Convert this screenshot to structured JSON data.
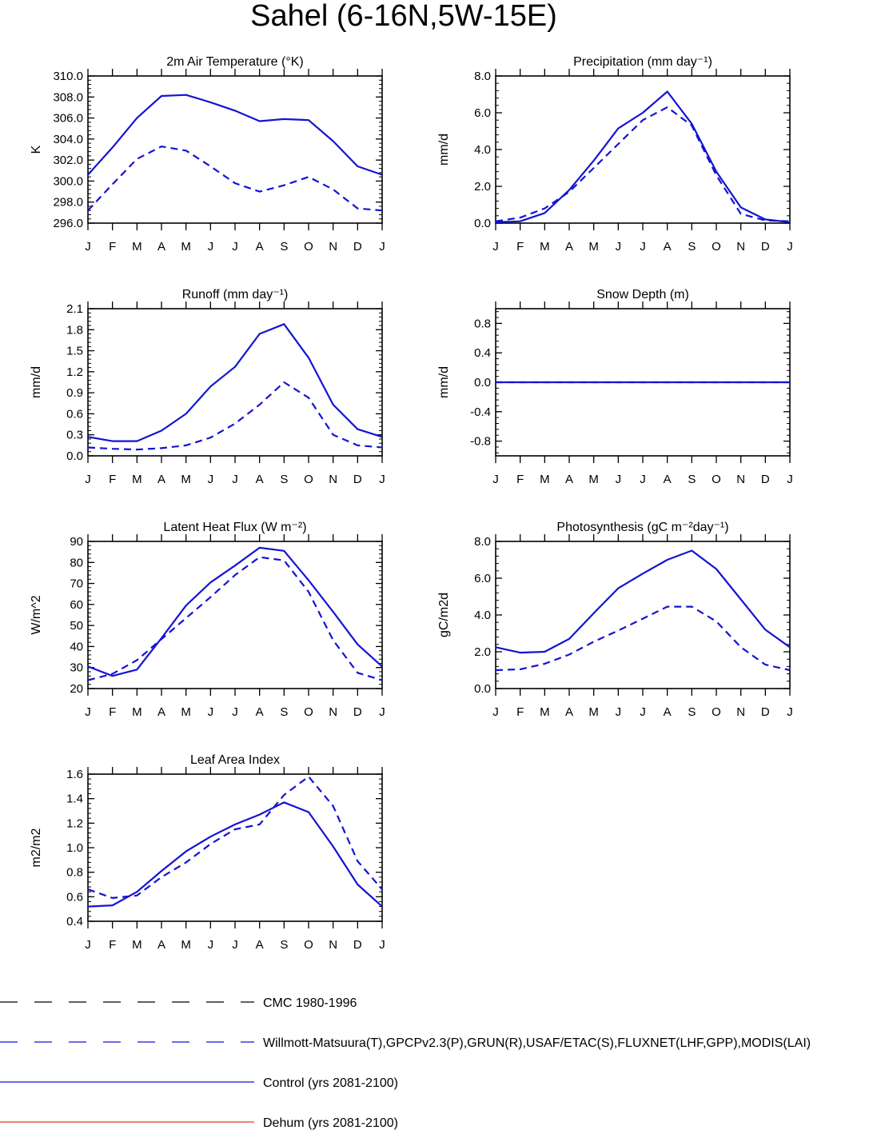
{
  "figure": {
    "title": "Sahel (6-16N,5W-15E)"
  },
  "colors": {
    "control": "#1414d2",
    "observed": "#1414d2",
    "cmc": "#000000",
    "dehum": "#e8341c",
    "axis": "#000000"
  },
  "chart_data": [
    {
      "type": "line",
      "id": "temp",
      "title": "2m Air Temperature (°K)",
      "ylabel": "K",
      "ylim": [
        296,
        310
      ],
      "yticks": [
        "296.0",
        "298.0",
        "300.0",
        "302.0",
        "304.0",
        "306.0",
        "308.0",
        "310.0"
      ],
      "categories": [
        "J",
        "F",
        "M",
        "A",
        "M",
        "J",
        "J",
        "A",
        "S",
        "O",
        "N",
        "D",
        "J"
      ],
      "series": [
        {
          "name": "Control (yrs 2081-2100)",
          "style": "solid",
          "values": [
            300.6,
            303.2,
            306.0,
            308.1,
            308.2,
            307.5,
            306.7,
            305.7,
            305.9,
            305.8,
            303.8,
            301.4,
            300.6
          ]
        },
        {
          "name": "Observed",
          "style": "dashed",
          "values": [
            297.2,
            299.7,
            302.1,
            303.3,
            302.9,
            301.4,
            299.8,
            299.0,
            299.6,
            300.4,
            299.2,
            297.4,
            297.2
          ]
        }
      ]
    },
    {
      "type": "line",
      "id": "precip",
      "title": "Precipitation (mm day⁻¹)",
      "ylabel": "mm/d",
      "ylim": [
        0,
        8
      ],
      "yticks": [
        "0.0",
        "2.0",
        "4.0",
        "6.0",
        "8.0"
      ],
      "categories": [
        "J",
        "F",
        "M",
        "A",
        "M",
        "J",
        "J",
        "A",
        "S",
        "O",
        "N",
        "D",
        "J"
      ],
      "series": [
        {
          "name": "Control (yrs 2081-2100)",
          "style": "solid",
          "values": [
            0.05,
            0.1,
            0.55,
            1.8,
            3.4,
            5.15,
            6.0,
            7.15,
            5.4,
            2.8,
            0.85,
            0.2,
            0.05
          ]
        },
        {
          "name": "Observed",
          "style": "dashed",
          "values": [
            0.1,
            0.3,
            0.8,
            1.7,
            3.0,
            4.3,
            5.6,
            6.3,
            5.3,
            2.6,
            0.5,
            0.15,
            0.1
          ]
        }
      ]
    },
    {
      "type": "line",
      "id": "runoff",
      "title": "Runoff (mm day⁻¹)",
      "ylabel": "mm/d",
      "ylim": [
        0,
        2.1
      ],
      "yticks": [
        "0.0",
        "0.3",
        "0.6",
        "0.9",
        "1.2",
        "1.5",
        "1.8",
        "2.1"
      ],
      "categories": [
        "J",
        "F",
        "M",
        "A",
        "M",
        "J",
        "J",
        "A",
        "S",
        "O",
        "N",
        "D",
        "J"
      ],
      "series": [
        {
          "name": "Control (yrs 2081-2100)",
          "style": "solid",
          "values": [
            0.27,
            0.21,
            0.21,
            0.36,
            0.6,
            0.99,
            1.27,
            1.74,
            1.88,
            1.4,
            0.73,
            0.38,
            0.27
          ]
        },
        {
          "name": "Observed",
          "style": "dashed",
          "values": [
            0.12,
            0.1,
            0.09,
            0.11,
            0.15,
            0.26,
            0.46,
            0.73,
            1.05,
            0.83,
            0.3,
            0.15,
            0.12
          ]
        }
      ]
    },
    {
      "type": "line",
      "id": "snow",
      "title": "Snow Depth (m)",
      "ylabel": "mm/d",
      "ylim": [
        -1,
        1
      ],
      "yticks": [
        "-0.8",
        "-0.4",
        "0.0",
        "0.4",
        "0.8"
      ],
      "categories": [
        "J",
        "F",
        "M",
        "A",
        "M",
        "J",
        "J",
        "A",
        "S",
        "O",
        "N",
        "D",
        "J"
      ],
      "series": [
        {
          "name": "Control (yrs 2081-2100)",
          "style": "solid",
          "values": [
            0,
            0,
            0,
            0,
            0,
            0,
            0,
            0,
            0,
            0,
            0,
            0,
            0
          ]
        },
        {
          "name": "Observed",
          "style": "dashed",
          "values": [
            0,
            0,
            0,
            0,
            0,
            0,
            0,
            0,
            0,
            0,
            0,
            0,
            0
          ]
        }
      ]
    },
    {
      "type": "line",
      "id": "lhf",
      "title": "Latent Heat Flux (W m⁻²)",
      "ylabel": "W/m^2",
      "ylim": [
        20,
        90
      ],
      "yticks": [
        "20",
        "30",
        "40",
        "50",
        "60",
        "70",
        "80",
        "90"
      ],
      "categories": [
        "J",
        "F",
        "M",
        "A",
        "M",
        "J",
        "J",
        "A",
        "S",
        "O",
        "N",
        "D",
        "J"
      ],
      "series": [
        {
          "name": "Control (yrs 2081-2100)",
          "style": "solid",
          "values": [
            30.5,
            26.0,
            29.0,
            44.0,
            59.5,
            70.5,
            78.5,
            87.0,
            85.5,
            71.5,
            56.5,
            41.0,
            30.5
          ]
        },
        {
          "name": "Observed",
          "style": "dashed",
          "values": [
            24.0,
            27.0,
            33.5,
            43.5,
            53.5,
            63.5,
            74.0,
            82.5,
            81.0,
            66.0,
            43.0,
            27.5,
            24.0
          ]
        }
      ]
    },
    {
      "type": "line",
      "id": "photo",
      "title": "Photosynthesis (gC m⁻²day⁻¹)",
      "ylabel": "gC/m2d",
      "ylim": [
        0,
        8
      ],
      "yticks": [
        "0.0",
        "2.0",
        "4.0",
        "6.0",
        "8.0"
      ],
      "categories": [
        "J",
        "F",
        "M",
        "A",
        "M",
        "J",
        "J",
        "A",
        "S",
        "O",
        "N",
        "D",
        "J"
      ],
      "series": [
        {
          "name": "Control (yrs 2081-2100)",
          "style": "solid",
          "values": [
            2.25,
            1.95,
            2.0,
            2.7,
            4.1,
            5.45,
            6.25,
            7.0,
            7.5,
            6.5,
            4.85,
            3.2,
            2.25
          ]
        },
        {
          "name": "Observed",
          "style": "dashed",
          "values": [
            1.0,
            1.05,
            1.35,
            1.85,
            2.55,
            3.15,
            3.8,
            4.45,
            4.45,
            3.65,
            2.25,
            1.3,
            1.0
          ]
        }
      ]
    },
    {
      "type": "line",
      "id": "lai",
      "title": "Leaf Area Index",
      "ylabel": "m2/m2",
      "ylim": [
        0.4,
        1.6
      ],
      "yticks": [
        "0.4",
        "0.6",
        "0.8",
        "1.0",
        "1.2",
        "1.4",
        "1.6"
      ],
      "categories": [
        "J",
        "F",
        "M",
        "A",
        "M",
        "J",
        "J",
        "A",
        "S",
        "O",
        "N",
        "D",
        "J"
      ],
      "series": [
        {
          "name": "Control (yrs 2081-2100)",
          "style": "solid",
          "values": [
            0.52,
            0.53,
            0.64,
            0.81,
            0.97,
            1.09,
            1.19,
            1.27,
            1.37,
            1.29,
            1.01,
            0.7,
            0.52
          ]
        },
        {
          "name": "Observed",
          "style": "dashed",
          "values": [
            0.66,
            0.59,
            0.61,
            0.76,
            0.88,
            1.03,
            1.15,
            1.19,
            1.43,
            1.58,
            1.34,
            0.89,
            0.66
          ]
        }
      ]
    }
  ],
  "legend": {
    "items": [
      {
        "label": "CMC 1980-1996",
        "style": "dashed",
        "color_key": "cmc"
      },
      {
        "label": "Willmott-Matsuura(T),GPCPv2.3(P),GRUN(R),USAF/ETAC(S),FLUXNET(LHF,GPP),MODIS(LAI)",
        "style": "dashed",
        "color_key": "observed"
      },
      {
        "label": "Control (yrs 2081-2100)",
        "style": "solid",
        "color_key": "control"
      },
      {
        "label": "Dehum (yrs 2081-2100)",
        "style": "solid",
        "color_key": "dehum"
      }
    ]
  }
}
